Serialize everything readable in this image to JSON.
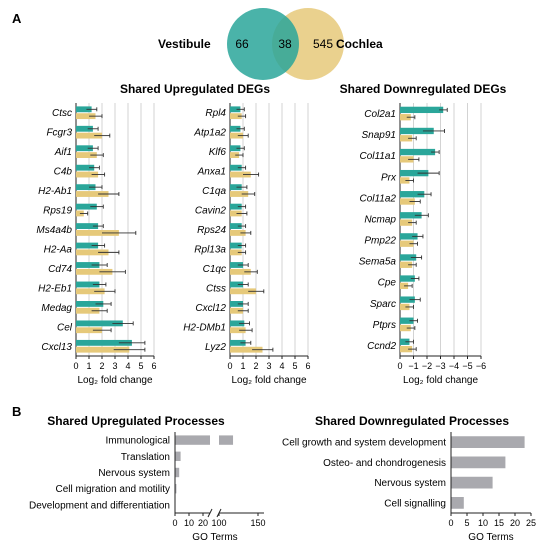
{
  "panel_labels": [
    "A",
    "B"
  ],
  "venn": {
    "left_label": "Vestibule",
    "right_label": "Cochlea",
    "left_only": "66",
    "overlap": "38",
    "right_only": "545",
    "left_color": "#2aa69a",
    "right_color": "#e6c97a"
  },
  "colors": {
    "vestibule": "#2aa69a",
    "cochlea": "#e6c97a",
    "process_bar": "#a9a9ae"
  },
  "chart_data": [
    {
      "type": "bar",
      "orientation": "horizontal",
      "title": "Shared Upregulated DEGs",
      "xlabel": "Log₂ fold change",
      "xlim": [
        0,
        6
      ],
      "xticks": [
        "0",
        "1",
        "2",
        "3",
        "4",
        "5",
        "6"
      ],
      "categories": [
        "Ctsc",
        "Fcgr3",
        "Aif1",
        "C4b",
        "H2-Ab1",
        "Rps19",
        "Ms4a4b",
        "H2-Aa",
        "Cd74",
        "H2-Eb1",
        "Medag",
        "Cel",
        "Cxcl13"
      ],
      "series": [
        {
          "values": [
            1.2,
            1.3,
            1.3,
            1.4,
            1.5,
            1.6,
            1.7,
            1.7,
            1.8,
            1.8,
            2.1,
            3.6,
            4.3
          ],
          "errors": [
            0.4,
            0.4,
            0.4,
            0.4,
            0.5,
            0.5,
            0.4,
            0.5,
            0.6,
            0.5,
            0.6,
            0.8,
            1.0
          ]
        },
        {
          "values": [
            1.5,
            2.0,
            1.6,
            1.7,
            2.5,
            0.6,
            3.3,
            2.5,
            2.8,
            2.2,
            1.8,
            2.0,
            4.1
          ],
          "errors": [
            0.5,
            0.6,
            0.5,
            0.5,
            0.8,
            0.3,
            1.3,
            0.8,
            1.0,
            0.8,
            0.6,
            0.7,
            1.2
          ]
        }
      ]
    },
    {
      "type": "bar",
      "orientation": "horizontal",
      "title": "",
      "xlabel": "Log₂ fold change",
      "xlim": [
        0,
        6
      ],
      "xticks": [
        "0",
        "1",
        "2",
        "3",
        "4",
        "5",
        "6"
      ],
      "categories": [
        "Rpl4",
        "Atp1a2",
        "Klf6",
        "Anxa1",
        "C1qa",
        "Cavin2",
        "Rps24",
        "Rpl13a",
        "C1qc",
        "Ctss",
        "Cxcl12",
        "H2-DMb1",
        "Lyz2"
      ],
      "series": [
        {
          "values": [
            0.8,
            0.8,
            0.8,
            0.9,
            0.9,
            0.9,
            0.9,
            0.9,
            1.0,
            1.0,
            1.0,
            1.1,
            1.2
          ],
          "errors": [
            0.3,
            0.3,
            0.3,
            0.3,
            0.4,
            0.3,
            0.3,
            0.3,
            0.4,
            0.4,
            0.4,
            0.4,
            0.4
          ]
        },
        {
          "values": [
            0.9,
            1.0,
            0.7,
            1.6,
            1.4,
            0.9,
            1.2,
            0.9,
            1.6,
            2.0,
            1.0,
            1.2,
            2.5
          ],
          "errors": [
            0.3,
            0.4,
            0.3,
            0.6,
            0.5,
            0.4,
            0.4,
            0.3,
            0.5,
            0.6,
            0.4,
            0.5,
            0.8
          ]
        }
      ]
    },
    {
      "type": "bar",
      "orientation": "horizontal",
      "title": "Shared Downregulated DEGs",
      "xlabel": "Log₂ fold change",
      "xlim": [
        0,
        -6
      ],
      "xticks": [
        "0",
        "−1",
        "−2",
        "−3",
        "−4",
        "−5",
        "−6"
      ],
      "categories": [
        "Col2a1",
        "Snap91",
        "Col11a1",
        "Prx",
        "Col11a2",
        "Ncmap",
        "Pmp22",
        "Sema5a",
        "Cpe",
        "Sparc",
        "Ptprs",
        "Ccnd2"
      ],
      "series": [
        {
          "values": [
            -3.2,
            -2.5,
            -2.6,
            -2.1,
            -1.8,
            -1.6,
            -1.3,
            -1.2,
            -1.1,
            -1.1,
            -1.0,
            -0.7
          ],
          "errors": [
            0.3,
            0.8,
            0.3,
            0.8,
            0.5,
            0.5,
            0.4,
            0.4,
            0.3,
            0.4,
            0.3,
            0.3
          ]
        },
        {
          "values": [
            -0.8,
            -0.9,
            -1.0,
            -0.7,
            -1.1,
            -0.9,
            -1.0,
            -0.9,
            -0.6,
            -0.7,
            -0.8,
            -0.9
          ],
          "errors": [
            0.3,
            0.3,
            0.4,
            0.3,
            0.4,
            0.3,
            0.3,
            0.3,
            0.3,
            0.3,
            0.3,
            0.3
          ]
        }
      ]
    },
    {
      "type": "bar",
      "orientation": "horizontal",
      "title": "Shared Upregulated Processes",
      "xlabel": "GO Terms",
      "axis_break": [
        25,
        100
      ],
      "xticks": [
        "0",
        "10",
        "20",
        "100",
        "150"
      ],
      "categories": [
        "Immunological",
        "Translation",
        "Nervous system",
        "Cell migration and motility",
        "Development and differentiation"
      ],
      "values": [
        118,
        4,
        3,
        1,
        0
      ]
    },
    {
      "type": "bar",
      "orientation": "horizontal",
      "title": "Shared Downregulated Processes",
      "xlabel": "GO Terms",
      "xlim": [
        0,
        25
      ],
      "xticks": [
        "0",
        "5",
        "10",
        "15",
        "20",
        "25"
      ],
      "categories": [
        "Cell growth and system development",
        "Osteo- and chondrogenesis",
        "Nervous system",
        "Cell signalling"
      ],
      "values": [
        23,
        17,
        13,
        4
      ]
    }
  ]
}
